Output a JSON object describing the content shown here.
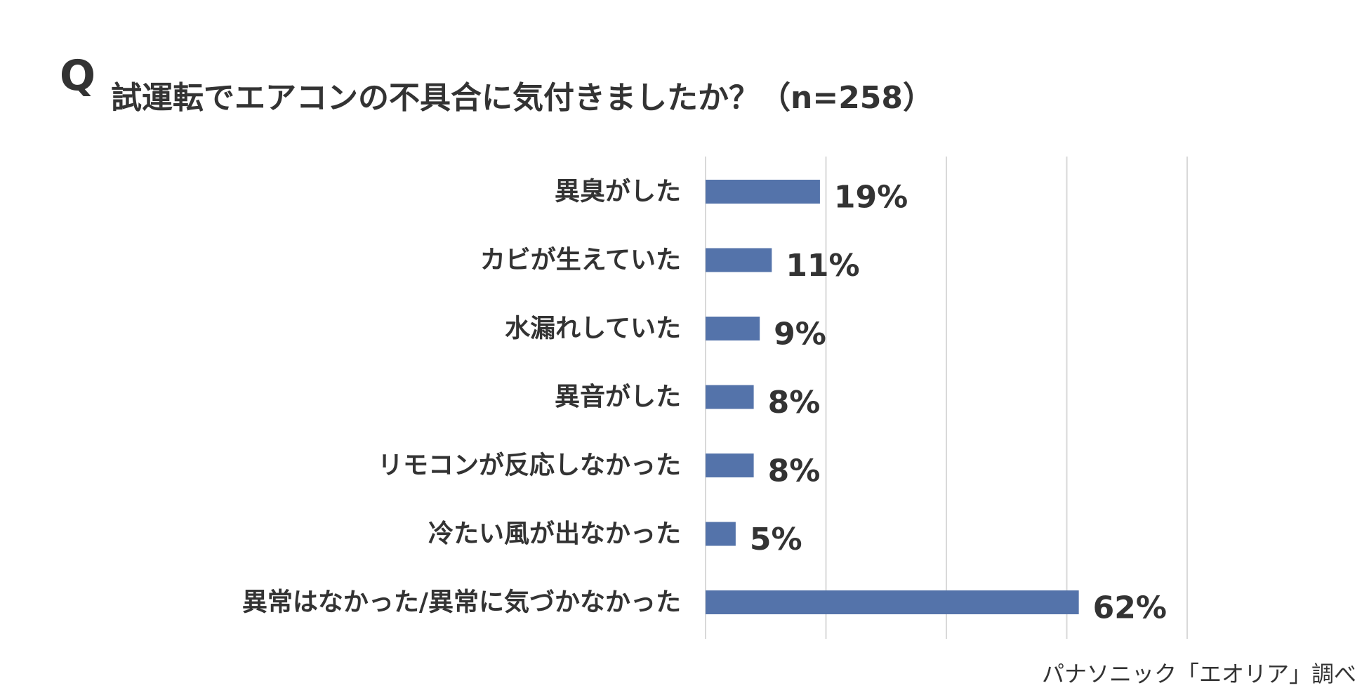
{
  "title": {
    "q_mark": "Q",
    "question": "試運転でエアコンの不具合に気付きましたか？（n=258）"
  },
  "source": "パナソニック「エオリア」調べ",
  "colors": {
    "bar": "#5473aa",
    "grid": "#d9d9d9",
    "text": "#333333"
  },
  "chart_data": {
    "type": "bar",
    "orientation": "horizontal",
    "categories": [
      "異臭がした",
      "カビが生えていた",
      "水漏れしていた",
      "異音がした",
      "リモコンが反応しなかった",
      "冷たい風が出なかった",
      "異常はなかった/異常に気づかなかった"
    ],
    "values": [
      19,
      11,
      9,
      8,
      8,
      5,
      62
    ],
    "value_labels": [
      "19%",
      "11%",
      "9%",
      "8%",
      "8%",
      "5%",
      "62%"
    ],
    "unit": "%",
    "xlim": [
      0,
      80
    ],
    "grid_step": 20,
    "grid": true,
    "legend": "none"
  }
}
